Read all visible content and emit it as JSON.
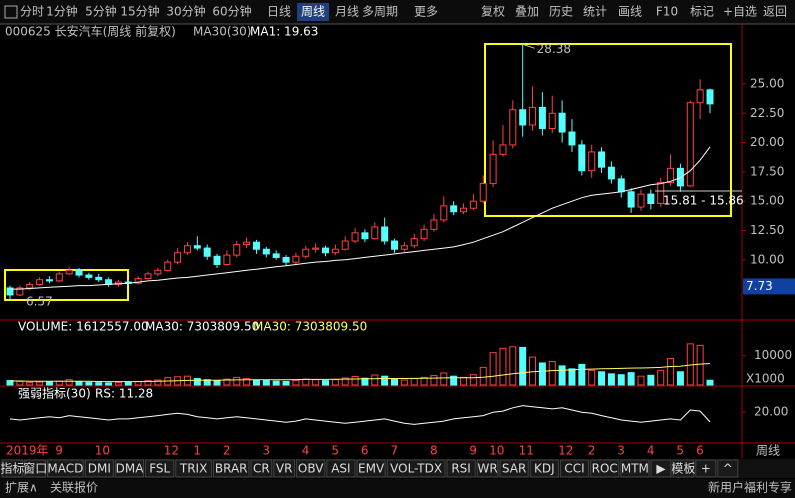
{
  "toolbar": {
    "periods": [
      "分时",
      "1分钟",
      "5分钟",
      "15分钟",
      "30分钟",
      "60分钟",
      "日线",
      "周线",
      "月线",
      "多周期",
      "更多"
    ],
    "active": "周线",
    "actions": [
      "复权",
      "叠加",
      "历史",
      "统计",
      "画线",
      "F10",
      "标记",
      "+自选",
      "返回"
    ]
  },
  "header": {
    "stock": "000625 长安汽车(周线 前复权)",
    "indicator": "MA30(30)",
    "ma_label": "MA1: 19.63"
  },
  "chart_data": {
    "type": "candlestick",
    "categories": [
      "2019年",
      null,
      null,
      null,
      null,
      "9",
      null,
      null,
      null,
      "10",
      null,
      null,
      null,
      null,
      null,
      null,
      "12",
      null,
      null,
      "1",
      null,
      null,
      "2",
      null,
      null,
      null,
      "3",
      null,
      null,
      null,
      "4",
      null,
      null,
      "5",
      null,
      null,
      "6",
      null,
      null,
      "7",
      null,
      null,
      null,
      "8",
      null,
      null,
      null,
      "9",
      null,
      "10",
      null,
      null,
      "11",
      null,
      null,
      null,
      "12",
      null,
      null,
      "2",
      null,
      null,
      "3",
      null,
      null,
      "4",
      null,
      null,
      "5",
      null,
      "6",
      null
    ],
    "period_label": "周线",
    "up_color": "#ff4040",
    "down_color": "#54ffff",
    "ma_color": "#ffffff",
    "candles": {
      "open": [
        7.6,
        7.0,
        7.6,
        7.9,
        8.3,
        8.2,
        8.8,
        9.1,
        8.7,
        8.5,
        8.3,
        7.9,
        8.1,
        8.0,
        8.4,
        8.8,
        9.1,
        9.8,
        10.6,
        11.2,
        11.0,
        10.3,
        9.6,
        10.4,
        11.3,
        11.5,
        10.9,
        10.5,
        10.2,
        9.8,
        10.3,
        10.9,
        11.0,
        10.6,
        10.9,
        11.6,
        12.3,
        11.8,
        12.8,
        11.6,
        10.9,
        11.2,
        11.8,
        12.6,
        13.4,
        14.6,
        14.1,
        14.4,
        15.0,
        16.5,
        19.0,
        19.8,
        22.8,
        21.5,
        23.0,
        21.2,
        22.5,
        20.9,
        19.8,
        17.6,
        19.2,
        17.9,
        16.9,
        15.8,
        14.5,
        15.6,
        14.8,
        16.6,
        17.8,
        16.3,
        23.4,
        24.5
      ],
      "high": [
        7.8,
        7.8,
        8.1,
        8.5,
        8.6,
        9.0,
        9.4,
        9.3,
        8.9,
        8.8,
        8.5,
        8.3,
        8.3,
        8.6,
        9.0,
        9.3,
        10.0,
        11.0,
        11.5,
        12.0,
        11.3,
        10.5,
        10.8,
        11.6,
        11.9,
        11.7,
        11.1,
        10.8,
        10.4,
        10.6,
        11.2,
        11.4,
        11.2,
        11.3,
        12.0,
        12.7,
        12.6,
        13.2,
        13.6,
        11.8,
        11.5,
        12.2,
        13.0,
        13.9,
        15.4,
        15.0,
        14.8,
        15.6,
        17.2,
        20.2,
        21.5,
        23.6,
        28.38,
        24.8,
        24.3,
        24.0,
        23.6,
        22.0,
        20.2,
        19.8,
        19.6,
        18.4,
        17.2,
        16.1,
        16.0,
        16.0,
        17.0,
        19.0,
        18.2,
        23.6,
        25.4,
        24.6
      ],
      "low": [
        6.57,
        6.9,
        7.4,
        7.8,
        8.0,
        8.1,
        8.7,
        8.5,
        8.3,
        8.1,
        7.7,
        7.7,
        7.8,
        7.9,
        8.3,
        8.6,
        9.0,
        9.6,
        10.4,
        10.8,
        10.0,
        9.3,
        9.5,
        10.2,
        11.0,
        10.5,
        10.2,
        10.0,
        9.5,
        9.6,
        10.1,
        10.6,
        10.3,
        10.4,
        10.8,
        11.4,
        11.5,
        11.7,
        11.3,
        10.6,
        10.7,
        11.0,
        11.6,
        12.4,
        13.2,
        13.8,
        13.9,
        14.2,
        14.8,
        16.2,
        18.8,
        19.5,
        20.5,
        21.0,
        20.6,
        20.8,
        20.0,
        19.2,
        17.2,
        17.0,
        17.4,
        16.5,
        15.3,
        14.0,
        14.2,
        14.3,
        14.5,
        16.3,
        15.8,
        16.2,
        22.0,
        22.5
      ],
      "close": [
        7.0,
        7.6,
        7.9,
        8.3,
        8.2,
        8.8,
        9.1,
        8.7,
        8.5,
        8.3,
        7.9,
        8.1,
        8.0,
        8.4,
        8.8,
        9.1,
        9.8,
        10.6,
        11.2,
        11.0,
        10.3,
        9.6,
        10.4,
        11.3,
        11.5,
        10.9,
        10.5,
        10.2,
        9.8,
        10.3,
        10.9,
        11.0,
        10.6,
        10.9,
        11.6,
        12.3,
        11.8,
        12.8,
        11.6,
        10.9,
        11.2,
        11.8,
        12.6,
        13.4,
        14.6,
        14.1,
        14.4,
        15.0,
        16.5,
        19.0,
        19.8,
        22.8,
        21.5,
        23.0,
        21.2,
        22.5,
        20.9,
        19.8,
        17.6,
        19.2,
        17.9,
        16.9,
        15.8,
        14.5,
        15.6,
        14.8,
        16.6,
        17.8,
        16.3,
        23.4,
        24.5,
        23.3
      ]
    },
    "ma_values": [
      7.5,
      7.5,
      7.55,
      7.6,
      7.65,
      7.7,
      7.75,
      7.8,
      7.8,
      7.85,
      7.9,
      7.95,
      8.0,
      8.1,
      8.2,
      8.25,
      8.35,
      8.45,
      8.5,
      8.6,
      8.7,
      8.8,
      8.9,
      9.0,
      9.1,
      9.2,
      9.3,
      9.4,
      9.5,
      9.6,
      9.7,
      9.8,
      9.85,
      9.95,
      10.0,
      10.1,
      10.2,
      10.3,
      10.4,
      10.5,
      10.6,
      10.7,
      10.8,
      10.9,
      11.0,
      11.1,
      11.3,
      11.5,
      11.8,
      12.1,
      12.4,
      12.8,
      13.2,
      13.6,
      14.0,
      14.4,
      14.7,
      15.0,
      15.3,
      15.5,
      15.6,
      15.7,
      15.8,
      16.0,
      16.2,
      16.4,
      16.5,
      16.7,
      17.0,
      17.6,
      18.5,
      19.63
    ],
    "ylim": [
      5,
      28.75
    ],
    "yticks": [
      {
        "value": 10,
        "label": "10.00"
      },
      {
        "value": 12.5,
        "label": "12.50"
      },
      {
        "value": 15,
        "label": "15.00"
      },
      {
        "value": 17.5,
        "label": "17.50"
      },
      {
        "value": 20,
        "label": "20.00"
      },
      {
        "value": 22.5,
        "label": "22.50"
      },
      {
        "value": 25,
        "label": "25.00"
      }
    ],
    "cursor_price": 7.73,
    "high_label": "28.38",
    "low_label": "6.57",
    "range_label": "15.81 - 15.86",
    "volume": {
      "label": "VOLUME: 1612557.00",
      "ma_label": "MA30: 7303809.50",
      "ma_label2": "MA30: 7303809.50",
      "unit": "X1000",
      "ylim": [
        0,
        16000
      ],
      "yticks": [
        10000
      ],
      "ma_color": "#ffff66",
      "values": [
        1500,
        1200,
        900,
        1000,
        1100,
        1300,
        1800,
        1200,
        900,
        800,
        700,
        900,
        1000,
        1200,
        1500,
        1700,
        2500,
        2800,
        3000,
        2200,
        1800,
        1500,
        2000,
        2600,
        2200,
        1700,
        1500,
        1300,
        1200,
        1600,
        2000,
        1800,
        1500,
        1800,
        2400,
        2900,
        2300,
        3400,
        3000,
        2000,
        1700,
        2200,
        2600,
        3200,
        4100,
        3000,
        2600,
        3500,
        6000,
        11000,
        12500,
        13000,
        12800,
        9500,
        7500,
        8000,
        6500,
        5500,
        7000,
        5000,
        4500,
        3800,
        3500,
        4200,
        3000,
        3300,
        5000,
        9000,
        4500,
        14000,
        13500,
        1612.557
      ],
      "ma_values": [
        1400,
        1350,
        1300,
        1250,
        1250,
        1250,
        1300,
        1300,
        1250,
        1200,
        1150,
        1150,
        1150,
        1150,
        1200,
        1250,
        1350,
        1450,
        1550,
        1600,
        1650,
        1650,
        1700,
        1750,
        1800,
        1800,
        1800,
        1800,
        1800,
        1850,
        1900,
        1900,
        1900,
        1950,
        2000,
        2050,
        2100,
        2150,
        2200,
        2200,
        2200,
        2250,
        2300,
        2350,
        2400,
        2450,
        2450,
        2500,
        2650,
        3000,
        3400,
        3800,
        4200,
        4500,
        4700,
        4900,
        5050,
        5150,
        5300,
        5400,
        5500,
        5600,
        5650,
        5750,
        5800,
        5850,
        6000,
        6300,
        6400,
        6800,
        7100,
        7303.8095
      ]
    },
    "rs": {
      "label": "强弱指标(30)",
      "value_label": "RS: 11.28",
      "ylim": [
        -5,
        40
      ],
      "yticks": [
        {
          "value": 20,
          "label": "20.00"
        }
      ],
      "values": [
        14,
        13,
        14,
        15,
        16,
        15,
        17,
        16,
        15,
        14,
        13,
        14,
        14,
        15,
        16,
        17,
        18,
        19,
        18,
        16,
        15,
        14,
        15,
        16,
        15,
        14,
        13,
        12,
        11,
        12,
        14,
        13,
        12,
        11,
        10,
        11,
        12,
        13,
        14,
        12,
        10,
        9,
        10,
        11,
        12,
        14,
        15,
        16,
        17,
        20,
        21,
        24,
        26,
        25,
        24,
        23,
        24,
        22,
        20,
        19,
        17,
        15,
        13,
        12,
        11,
        12,
        13,
        14,
        13,
        22,
        21,
        11.28
      ]
    }
  },
  "bottom_tabs": [
    "指标",
    "窗口",
    "MACD",
    "DMI",
    "DMA",
    "FSL",
    "TRIX",
    "BRAR",
    "CR",
    "VR",
    "OBV",
    "ASI",
    "EMV",
    "VOL-TDX",
    "RSI",
    "WR",
    "SAR",
    "KDJ",
    "CCI",
    "ROC",
    "MTM",
    "▶",
    "模板",
    "+",
    "^"
  ],
  "status": {
    "left": [
      "扩展∧",
      "关联报价"
    ],
    "right": "新用户福利专享"
  }
}
